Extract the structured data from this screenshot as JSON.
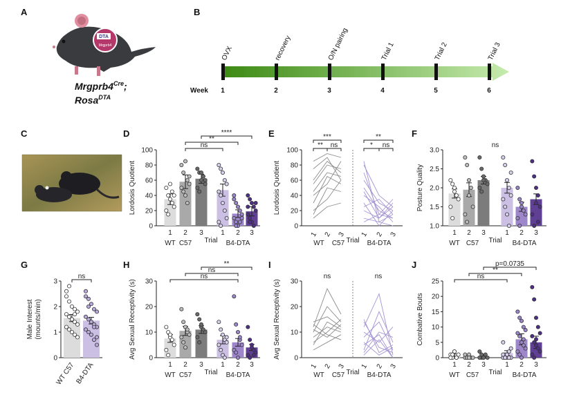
{
  "colors": {
    "wt": [
      "#dcdcdc",
      "#a9a9a9",
      "#7c7c7c"
    ],
    "b4": [
      "#cbbfe3",
      "#9d86c9",
      "#5f4094"
    ],
    "b4line": "#a493d3",
    "wtline": "#8c8c8c",
    "green_start": "#3c8a13",
    "green_end": "#c6ebae",
    "mouse_body": "#3a3b3f",
    "mouse_ear": "#e08ea0",
    "dta_circle": "#b5386b"
  },
  "mouse": {
    "badge_top": "DTA",
    "badge_bottom": "Mrgprb4"
  },
  "panelA": {
    "label": "A",
    "title_line1": "Mrgprb4",
    "title_sup1": "Cre",
    "title_suffix1": ";",
    "title_line2": "Rosa",
    "title_sup2": "DTA"
  },
  "panelB": {
    "label": "B",
    "week_label": "Week",
    "events": [
      {
        "name": "OVX",
        "week": "1"
      },
      {
        "name": "recovery",
        "week": "2"
      },
      {
        "name": "O/N pairing",
        "week": "3"
      },
      {
        "name": "Trial 1",
        "week": "4"
      },
      {
        "name": "Trial 2",
        "week": "5"
      },
      {
        "name": "Trial 3",
        "week": "6"
      }
    ]
  },
  "panelC": {
    "label": "C"
  },
  "chart_data": [
    {
      "id": "D",
      "label": "D",
      "type": "bar",
      "ylabel": "Lordosis Quotient",
      "ylim": [
        0,
        100
      ],
      "yticks": [
        "0",
        "20",
        "40",
        "60",
        "80",
        "100"
      ],
      "trial_label": "Trial",
      "group_labels": [
        "WT",
        "C57",
        "B4-DTA"
      ],
      "categories": [
        "1",
        "2",
        "3",
        "1",
        "2",
        "3"
      ],
      "values": [
        35,
        58,
        62,
        47,
        16,
        19
      ],
      "errors": [
        7,
        9,
        6,
        8,
        5,
        6
      ],
      "points": [
        [
          50,
          40,
          35,
          30,
          25,
          20,
          15,
          55,
          45,
          40
        ],
        [
          80,
          70,
          85,
          60,
          55,
          50,
          45,
          40,
          30,
          65
        ],
        [
          75,
          70,
          60,
          65,
          55,
          50,
          45,
          70,
          65,
          60
        ],
        [
          80,
          75,
          70,
          60,
          55,
          45,
          40,
          30,
          20,
          10,
          5,
          0
        ],
        [
          40,
          30,
          25,
          20,
          15,
          10,
          5,
          0,
          5,
          10,
          35,
          0
        ],
        [
          40,
          35,
          30,
          25,
          20,
          15,
          10,
          5,
          0,
          30,
          25,
          5
        ]
      ],
      "brackets": [
        {
          "from": 1,
          "to": 3,
          "level": 1,
          "text": "ns"
        },
        {
          "from": 1,
          "to": 4,
          "level": 2,
          "text": "**"
        },
        {
          "from": 2,
          "to": 5,
          "level": 3,
          "text": "****"
        }
      ]
    },
    {
      "id": "E",
      "label": "E",
      "type": "line",
      "ylabel": "Lordosis Quotient",
      "ylim": [
        0,
        100
      ],
      "yticks": [
        "0",
        "20",
        "40",
        "60",
        "80",
        "100"
      ],
      "trial_label": "Trial",
      "group_labels": [
        "WT",
        "C57",
        "B4-DTA"
      ],
      "categories": [
        "1",
        "2",
        "3"
      ],
      "wt_lines": [
        [
          85,
          95,
          90
        ],
        [
          75,
          90,
          60
        ],
        [
          60,
          85,
          70
        ],
        [
          55,
          80,
          75
        ],
        [
          45,
          70,
          65
        ],
        [
          40,
          55,
          85
        ],
        [
          30,
          65,
          55
        ],
        [
          20,
          35,
          60
        ],
        [
          15,
          50,
          45
        ],
        [
          10,
          25,
          30
        ]
      ],
      "b4_lines": [
        [
          85,
          5,
          15
        ],
        [
          80,
          40,
          25
        ],
        [
          70,
          15,
          35
        ],
        [
          60,
          30,
          20
        ],
        [
          50,
          20,
          10
        ],
        [
          45,
          10,
          30
        ],
        [
          40,
          25,
          5
        ],
        [
          30,
          0,
          20
        ],
        [
          25,
          35,
          15
        ],
        [
          20,
          10,
          25
        ],
        [
          10,
          5,
          0
        ],
        [
          5,
          15,
          10
        ]
      ],
      "brackets": [
        {
          "group": "wt",
          "from": 0,
          "to": 1,
          "level": 1,
          "text": "**"
        },
        {
          "group": "wt",
          "from": 1,
          "to": 2,
          "level": 1,
          "text": "ns"
        },
        {
          "group": "wt",
          "from": 0,
          "to": 2,
          "level": 2,
          "text": "***"
        },
        {
          "group": "b4",
          "from": 0,
          "to": 1,
          "level": 1,
          "text": "*"
        },
        {
          "group": "b4",
          "from": 1,
          "to": 2,
          "level": 1,
          "text": "ns"
        },
        {
          "group": "b4",
          "from": 0,
          "to": 2,
          "level": 2,
          "text": "**"
        }
      ]
    },
    {
      "id": "F",
      "label": "F",
      "type": "bar",
      "ylabel": "Posture Quality",
      "ylim": [
        1.0,
        3.0
      ],
      "yticks": [
        "1.0",
        "1.5",
        "2.0",
        "2.5",
        "3.0"
      ],
      "trial_label": "Trial",
      "group_labels": [
        "WT",
        "C57",
        "B4-DTA"
      ],
      "categories": [
        "1",
        "2",
        "3",
        "1",
        "2",
        "3"
      ],
      "values": [
        1.85,
        1.95,
        2.2,
        2.0,
        1.5,
        1.7
      ],
      "errors": [
        0.12,
        0.18,
        0.1,
        0.14,
        0.12,
        0.14
      ],
      "points": [
        [
          2.2,
          2.1,
          1.9,
          1.8,
          1.7,
          1.5,
          1.2,
          2.0
        ],
        [
          2.8,
          2.6,
          2.2,
          2.0,
          1.5,
          1.3,
          1.1,
          1.8
        ],
        [
          2.8,
          2.5,
          2.3,
          2.2,
          2.1,
          2.0,
          1.9,
          2.2
        ],
        [
          2.8,
          2.6,
          2.2,
          2.0,
          1.8,
          1.7,
          1.5,
          1.3,
          1.0,
          2.4
        ],
        [
          2.0,
          1.7,
          1.5,
          1.4,
          1.3,
          1.2,
          1.0,
          1.6
        ],
        [
          2.7,
          2.3,
          2.0,
          1.8,
          1.5,
          1.3,
          1.0,
          1.6,
          1.1
        ]
      ],
      "brackets": [
        {
          "from": 0,
          "to": 5,
          "level": 0,
          "text": "ns",
          "no_line": true
        }
      ]
    },
    {
      "id": "G",
      "label": "G",
      "type": "bar",
      "ylabel": "Male Interest",
      "ylabel2": "(mounts/min)",
      "ylim": [
        0,
        3
      ],
      "yticks": [
        "0",
        "1",
        "2",
        "3"
      ],
      "categories": [
        "WT C57",
        "B4-DTA"
      ],
      "values": [
        1.55,
        1.45
      ],
      "errors": [
        0.14,
        0.13
      ],
      "points": [
        [
          2.4,
          2.2,
          2.0,
          1.9,
          1.8,
          1.7,
          1.6,
          1.5,
          1.4,
          1.3,
          1.2,
          1.1,
          1.0,
          0.9,
          0.8,
          2.6,
          2.8,
          1.5,
          1.7
        ],
        [
          2.4,
          2.3,
          2.1,
          1.9,
          1.8,
          1.6,
          1.5,
          1.4,
          1.3,
          1.2,
          1.1,
          1.0,
          0.9,
          0.7,
          0.5,
          2.6,
          2.0,
          1.4,
          1.2,
          0.8
        ]
      ],
      "brackets": [
        {
          "from": 0,
          "to": 1,
          "level": 1,
          "text": "ns"
        }
      ]
    },
    {
      "id": "H",
      "label": "H",
      "type": "bar",
      "ylabel": "Avg Sexual Receptivity (s)",
      "ylim": [
        0,
        30
      ],
      "yticks": [
        "0",
        "10",
        "20",
        "30"
      ],
      "trial_label": "Trial",
      "group_labels": [
        "WT",
        "C57",
        "B4-DTA"
      ],
      "categories": [
        "1",
        "2",
        "3",
        "1",
        "2",
        "3"
      ],
      "values": [
        7.5,
        10.5,
        11.0,
        7.0,
        6.0,
        4.0
      ],
      "errors": [
        1.5,
        1.8,
        1.5,
        1.6,
        1.5,
        1.2
      ],
      "points": [
        [
          12,
          10,
          8,
          7,
          5,
          3,
          1,
          9
        ],
        [
          19,
          14,
          12,
          10,
          9,
          8,
          6,
          4,
          11
        ],
        [
          17,
          15,
          12,
          11,
          10,
          8,
          6,
          13
        ],
        [
          14,
          11,
          9,
          7,
          6,
          5,
          3,
          1,
          0,
          8
        ],
        [
          24,
          13,
          10,
          7,
          5,
          3,
          2,
          0,
          8
        ],
        [
          12,
          7,
          5,
          3,
          2,
          1,
          0,
          4,
          1
        ]
      ],
      "brackets": [
        {
          "from": 0,
          "to": 4,
          "level": 1,
          "text": "ns"
        },
        {
          "from": 1,
          "to": 4,
          "level": 2,
          "text": "ns"
        },
        {
          "from": 2,
          "to": 5,
          "level": 3,
          "text": "**"
        }
      ]
    },
    {
      "id": "I",
      "label": "I",
      "type": "line",
      "ylabel": "Avg Sexual Receptivity (s)",
      "ylim": [
        0,
        30
      ],
      "yticks": [
        "0",
        "10",
        "20",
        "30"
      ],
      "trial_label": "Trial",
      "group_labels": [
        "WT",
        "C57",
        "B4-DTA"
      ],
      "categories": [
        "1",
        "2",
        "3"
      ],
      "wt_lines": [
        [
          12,
          27,
          17
        ],
        [
          10,
          20,
          14
        ],
        [
          14,
          16,
          12
        ],
        [
          8,
          12,
          10
        ],
        [
          6,
          10,
          15
        ],
        [
          13,
          9,
          7
        ],
        [
          5,
          14,
          11
        ],
        [
          11,
          8,
          13
        ],
        [
          3,
          6,
          9
        ]
      ],
      "b4_lines": [
        [
          15,
          2,
          5
        ],
        [
          12,
          25,
          1
        ],
        [
          8,
          14,
          3
        ],
        [
          10,
          6,
          12
        ],
        [
          5,
          9,
          0
        ],
        [
          3,
          18,
          6
        ],
        [
          14,
          4,
          2
        ],
        [
          2,
          10,
          8
        ],
        [
          6,
          1,
          4
        ],
        [
          1,
          7,
          0
        ]
      ],
      "brackets": [
        {
          "group": "wt",
          "from": 0,
          "to": 2,
          "level": 0,
          "text": "ns",
          "no_line": true
        },
        {
          "group": "b4",
          "from": 0,
          "to": 2,
          "level": 0,
          "text": "ns",
          "no_line": true
        }
      ]
    },
    {
      "id": "J",
      "label": "J",
      "type": "bar",
      "ylabel": "Combative Bouts",
      "ylim": [
        0,
        25
      ],
      "yticks": [
        "0",
        "5",
        "10",
        "15",
        "20",
        "25"
      ],
      "trial_label": "Trial",
      "group_labels": [
        "WT",
        "C57",
        "B4-DTA"
      ],
      "categories": [
        "1",
        "2",
        "3",
        "1",
        "2",
        "3"
      ],
      "values": [
        0.8,
        0.3,
        0.4,
        1.5,
        6.0,
        5.0
      ],
      "errors": [
        0.4,
        0.2,
        0.3,
        0.8,
        1.8,
        2.0
      ],
      "points": [
        [
          1,
          0,
          2,
          0,
          1,
          0,
          1,
          2,
          0
        ],
        [
          0,
          0,
          1,
          0,
          0,
          1,
          0,
          0
        ],
        [
          2,
          0,
          0,
          1,
          0,
          0,
          1,
          0
        ],
        [
          0,
          1,
          0,
          2,
          0,
          5,
          0,
          1,
          0,
          3,
          1,
          0
        ],
        [
          15,
          13,
          12,
          10,
          9,
          8,
          7,
          5,
          4,
          3,
          2,
          1,
          0,
          6
        ],
        [
          23,
          19,
          13,
          10,
          8,
          7,
          5,
          4,
          3,
          2,
          1,
          0,
          6
        ]
      ],
      "brackets": [
        {
          "from": 0,
          "to": 3,
          "level": 1,
          "text": "ns"
        },
        {
          "from": 1,
          "to": 4,
          "level": 2,
          "text": "**"
        },
        {
          "from": 2,
          "to": 5,
          "level": 3,
          "text": "p=0.0735"
        }
      ]
    }
  ]
}
